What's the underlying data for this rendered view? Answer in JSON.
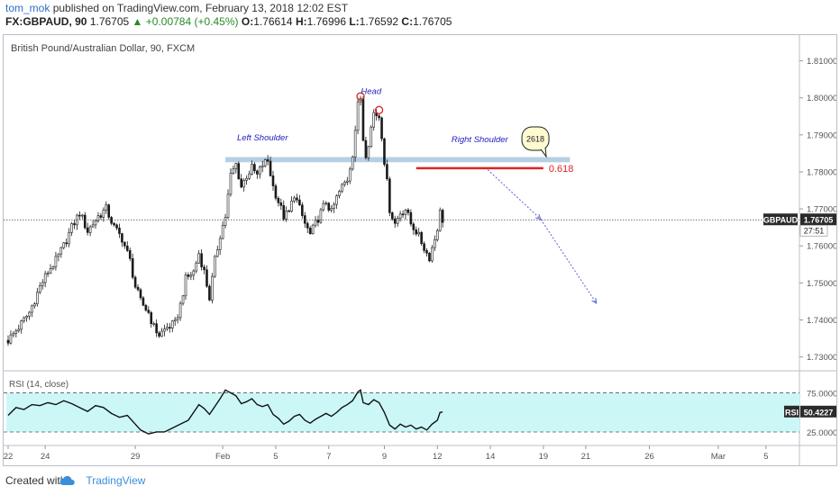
{
  "header": {
    "author": "tom_mok",
    "published": "published on TradingView.com, February 13, 2018 12:02 EST",
    "symbol": "FX:GBPAUD, 90",
    "last": "1.76705",
    "change": "▲ +0.00784 (+0.45%)",
    "open_label": "O:",
    "open": "1.76614",
    "high_label": "H:",
    "high": "1.76996",
    "low_label": "L:",
    "low": "1.76592",
    "close_label": "C:",
    "close": "1.76705"
  },
  "footer": {
    "created_with": "Created with",
    "brand": "TradingView"
  },
  "colors": {
    "up": "#2a8a2a",
    "candle": "#1a1a1a",
    "resistance_zone": "#a9c7df",
    "fib_line": "#e02424",
    "rsi_fill": "#ccf7f7",
    "rsi_line": "#111111",
    "annotation_text": "#2222c0",
    "arrow": "#5b62d9",
    "peak_marker": "#e02424"
  },
  "chart_data": {
    "type": "candlestick",
    "title": "British Pound/Australian Dollar, 90, FXCM",
    "y_ticks": [
      "1.81000",
      "1.80000",
      "1.79000",
      "1.78000",
      "1.77000",
      "1.76000",
      "1.75000",
      "1.74000",
      "1.73000"
    ],
    "ylim": [
      1.7265,
      1.8155
    ],
    "x_ticks": [
      "22",
      "24",
      "29",
      "Feb",
      "5",
      "7",
      "9",
      "12",
      "14",
      "19",
      "21",
      "26",
      "Mar",
      "5"
    ],
    "x_tick_index": [
      0,
      14,
      48,
      81,
      101,
      121,
      142,
      162,
      182,
      202,
      218,
      242,
      268,
      286
    ],
    "last_price_label": "GBPAUD",
    "last_price": "1.76705",
    "last_price_value": 1.76705,
    "countdown": "27:51",
    "close_path": [
      [
        0,
        1.7345
      ],
      [
        4,
        1.738
      ],
      [
        8,
        1.742
      ],
      [
        12,
        1.749
      ],
      [
        15,
        1.753
      ],
      [
        18,
        1.756
      ],
      [
        21,
        1.76
      ],
      [
        24,
        1.765
      ],
      [
        27,
        1.769
      ],
      [
        30,
        1.764
      ],
      [
        34,
        1.768
      ],
      [
        37,
        1.77
      ],
      [
        40,
        1.765
      ],
      [
        43,
        1.762
      ],
      [
        46,
        1.756
      ],
      [
        48,
        1.749
      ],
      [
        50,
        1.745
      ],
      [
        53,
        1.742
      ],
      [
        55,
        1.738
      ],
      [
        57,
        1.736
      ],
      [
        60,
        1.738
      ],
      [
        63,
        1.739
      ],
      [
        65,
        1.744
      ],
      [
        67,
        1.751
      ],
      [
        70,
        1.753
      ],
      [
        72,
        1.758
      ],
      [
        74,
        1.753
      ],
      [
        76,
        1.746
      ],
      [
        78,
        1.756
      ],
      [
        80,
        1.763
      ],
      [
        82,
        1.768
      ],
      [
        84,
        1.779
      ],
      [
        86,
        1.782
      ],
      [
        88,
        1.776
      ],
      [
        90,
        1.779
      ],
      [
        92,
        1.781
      ],
      [
        94,
        1.779
      ],
      [
        96,
        1.782
      ],
      [
        98,
        1.783
      ],
      [
        100,
        1.776
      ],
      [
        102,
        1.772
      ],
      [
        104,
        1.768
      ],
      [
        106,
        1.769
      ],
      [
        108,
        1.774
      ],
      [
        110,
        1.77
      ],
      [
        112,
        1.766
      ],
      [
        114,
        1.763
      ],
      [
        116,
        1.766
      ],
      [
        118,
        1.769
      ],
      [
        120,
        1.772
      ],
      [
        122,
        1.769
      ],
      [
        124,
        1.773
      ],
      [
        126,
        1.776
      ],
      [
        128,
        1.778
      ],
      [
        130,
        1.785
      ],
      [
        132,
        1.798
      ],
      [
        133,
        1.8
      ],
      [
        134,
        1.789
      ],
      [
        135,
        1.785
      ],
      [
        136,
        1.788
      ],
      [
        138,
        1.796
      ],
      [
        140,
        1.795
      ],
      [
        141,
        1.79
      ],
      [
        142,
        1.783
      ],
      [
        143,
        1.777
      ],
      [
        144,
        1.77
      ],
      [
        146,
        1.766
      ],
      [
        148,
        1.769
      ],
      [
        150,
        1.77
      ],
      [
        152,
        1.766
      ],
      [
        154,
        1.764
      ],
      [
        156,
        1.761
      ],
      [
        158,
        1.758
      ],
      [
        159,
        1.757
      ],
      [
        161,
        1.762
      ],
      [
        162,
        1.765
      ],
      [
        163,
        1.769
      ],
      [
        164,
        1.7671
      ]
    ],
    "resistance_zone": {
      "y1": 1.784,
      "y2": 1.7826,
      "x1": 82,
      "x2": 212
    },
    "fib_line": {
      "label": "0.618",
      "y": 1.781,
      "x1": 154,
      "x2": 202
    },
    "peaks": [
      {
        "x": 133,
        "y": 1.8004
      },
      {
        "x": 140,
        "y": 1.7967
      }
    ],
    "annotations": [
      {
        "text": "Head",
        "x": 137,
        "y": 1.801
      },
      {
        "text": "Left Shoulder",
        "x": 96,
        "y": 1.7885
      },
      {
        "text": "Right Shoulder",
        "x": 178,
        "y": 1.788
      }
    ],
    "callout": {
      "text": "2618",
      "x": 199,
      "y": 1.789
    },
    "projection": {
      "from": [
        181,
        1.7806
      ],
      "via": [
        201,
        1.7672
      ],
      "to": [
        222,
        1.7445
      ]
    },
    "rsi": {
      "label": "RSI (14, close)",
      "value": "50.4227",
      "value_num": 50.4227,
      "value_label": "RSI",
      "ticks": [
        "75.0000",
        "25.0000"
      ],
      "upper": 70,
      "lower": 30,
      "ylim": [
        18,
        88
      ],
      "path": [
        [
          0,
          47
        ],
        [
          3,
          55
        ],
        [
          6,
          53
        ],
        [
          9,
          58
        ],
        [
          12,
          57
        ],
        [
          15,
          60
        ],
        [
          18,
          58
        ],
        [
          21,
          62
        ],
        [
          24,
          59
        ],
        [
          27,
          55
        ],
        [
          30,
          51
        ],
        [
          33,
          57
        ],
        [
          36,
          55
        ],
        [
          39,
          49
        ],
        [
          42,
          45
        ],
        [
          45,
          47
        ],
        [
          48,
          38
        ],
        [
          50,
          32
        ],
        [
          53,
          28
        ],
        [
          56,
          30
        ],
        [
          59,
          30
        ],
        [
          62,
          34
        ],
        [
          65,
          38
        ],
        [
          68,
          42
        ],
        [
          70,
          50
        ],
        [
          72,
          58
        ],
        [
          74,
          54
        ],
        [
          76,
          48
        ],
        [
          78,
          56
        ],
        [
          80,
          64
        ],
        [
          82,
          73
        ],
        [
          84,
          70
        ],
        [
          86,
          67
        ],
        [
          88,
          59
        ],
        [
          90,
          61
        ],
        [
          92,
          64
        ],
        [
          94,
          58
        ],
        [
          96,
          56
        ],
        [
          98,
          58
        ],
        [
          100,
          48
        ],
        [
          102,
          44
        ],
        [
          104,
          38
        ],
        [
          106,
          41
        ],
        [
          108,
          46
        ],
        [
          110,
          48
        ],
        [
          112,
          42
        ],
        [
          114,
          39
        ],
        [
          116,
          43
        ],
        [
          118,
          46
        ],
        [
          120,
          49
        ],
        [
          122,
          46
        ],
        [
          124,
          50
        ],
        [
          126,
          55
        ],
        [
          128,
          58
        ],
        [
          130,
          62
        ],
        [
          132,
          71
        ],
        [
          133,
          73
        ],
        [
          134,
          60
        ],
        [
          136,
          58
        ],
        [
          138,
          63
        ],
        [
          140,
          60
        ],
        [
          142,
          50
        ],
        [
          144,
          37
        ],
        [
          146,
          33
        ],
        [
          148,
          38
        ],
        [
          150,
          35
        ],
        [
          152,
          37
        ],
        [
          154,
          33
        ],
        [
          156,
          35
        ],
        [
          158,
          32
        ],
        [
          160,
          38
        ],
        [
          162,
          42
        ],
        [
          163,
          50
        ],
        [
          164,
          50.4
        ]
      ]
    }
  }
}
